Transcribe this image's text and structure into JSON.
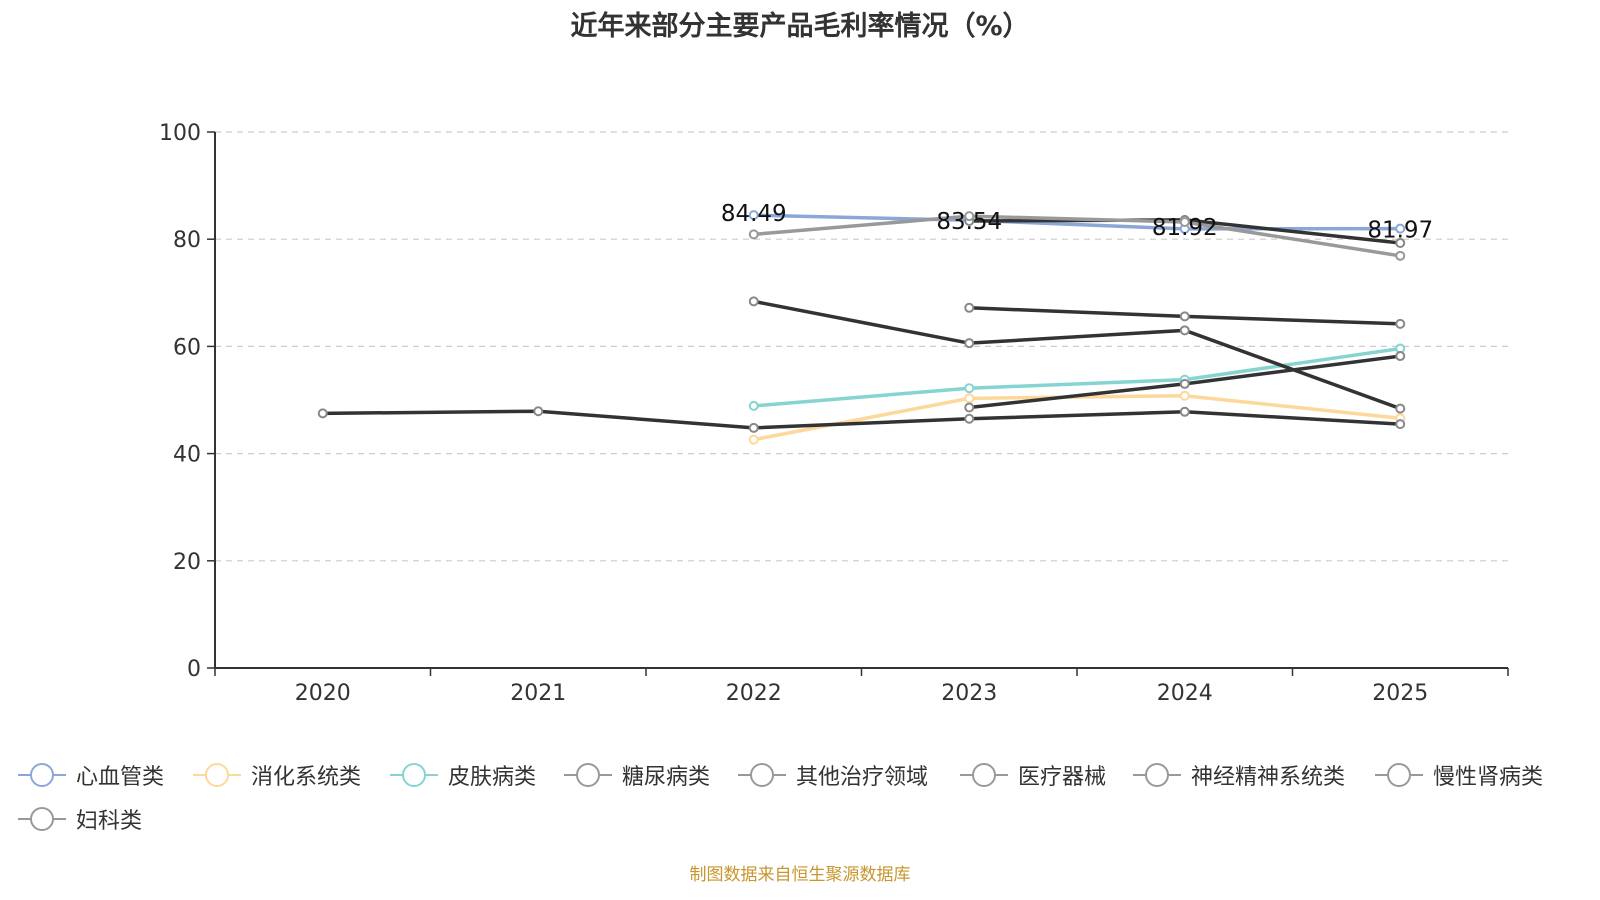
{
  "chart_data": {
    "type": "line",
    "title": "近年来部分主要产品毛利率情况（%）",
    "xlabel": "",
    "ylabel": "",
    "categories": [
      "2020",
      "2021",
      "2022",
      "2023",
      "2024",
      "2025"
    ],
    "ylim": [
      0,
      100
    ],
    "yticks": [
      0,
      20,
      40,
      60,
      80,
      100
    ],
    "grid": true,
    "legend_position": "bottom",
    "series": [
      {
        "name": "心血管类",
        "color": "#8aa7d8",
        "values": [
          null,
          null,
          84.49,
          83.54,
          81.92,
          81.97
        ],
        "show_labels": true
      },
      {
        "name": "消化系统类",
        "color": "#fcd89a",
        "values": [
          null,
          null,
          42.6,
          50.3,
          50.8,
          46.6
        ],
        "show_labels": false
      },
      {
        "name": "皮肤病类",
        "color": "#86d4d2",
        "values": [
          null,
          null,
          48.9,
          52.2,
          53.8,
          59.6
        ],
        "show_labels": false
      },
      {
        "name": "糖尿病类",
        "color": "#333333",
        "values": [
          null,
          null,
          null,
          67.2,
          65.6,
          64.2
        ],
        "show_labels": false
      },
      {
        "name": "其他治疗领域",
        "color": "#333333",
        "values": [
          47.5,
          47.9,
          44.8,
          46.5,
          47.8,
          45.5
        ],
        "show_labels": false
      },
      {
        "name": "医疗器械",
        "color": "#333333",
        "values": [
          null,
          null,
          68.4,
          60.6,
          63.0,
          48.4
        ],
        "show_labels": false
      },
      {
        "name": "神经精神系统类",
        "color": "#333333",
        "values": [
          null,
          null,
          null,
          48.6,
          53.0,
          58.2
        ],
        "show_labels": false
      },
      {
        "name": "慢性肾病类",
        "color": "#333333",
        "values": [
          null,
          null,
          null,
          83.4,
          83.6,
          79.3
        ],
        "show_labels": false
      },
      {
        "name": "妇科类",
        "color": "#999999",
        "values": [
          null,
          null,
          80.9,
          84.3,
          83.2,
          76.9
        ],
        "show_labels": false
      }
    ]
  },
  "legend": {
    "items": [
      {
        "label": "心血管类",
        "color": "#8aa7d8"
      },
      {
        "label": "消化系统类",
        "color": "#fcd89a"
      },
      {
        "label": "皮肤病类",
        "color": "#86d4d2"
      },
      {
        "label": "糖尿病类",
        "color": "#999999"
      },
      {
        "label": "其他治疗领域",
        "color": "#999999"
      },
      {
        "label": "医疗器械",
        "color": "#999999"
      },
      {
        "label": "神经精神系统类",
        "color": "#999999"
      },
      {
        "label": "慢性肾病类",
        "color": "#999999"
      },
      {
        "label": "妇科类",
        "color": "#999999"
      }
    ]
  },
  "footer": {
    "source": "制图数据来自恒生聚源数据库"
  }
}
